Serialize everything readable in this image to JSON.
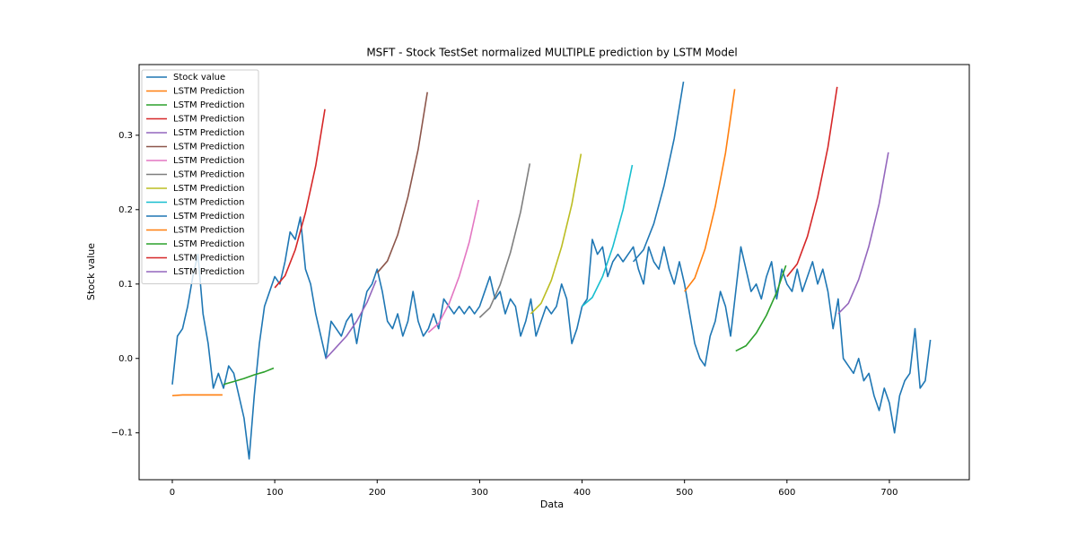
{
  "chart_data": {
    "type": "line",
    "title": "MSFT - Stock TestSet normalized MULTIPLE prediction by LSTM Model",
    "x_label": "Data",
    "y_label": "Stock value",
    "xlim": [
      -32.4,
      778
    ],
    "ylim": [
      -0.163,
      0.395
    ],
    "xticks": [
      0,
      100,
      200,
      300,
      400,
      500,
      600,
      700
    ],
    "yticks": [
      {
        "value": -0.1,
        "label": "−0.1"
      },
      {
        "value": 0,
        "label": "0.0"
      },
      0.1,
      0.2,
      0.3
    ],
    "grid": false,
    "legend": "upper left",
    "series": [
      {
        "name": "Stock value",
        "color": "#1f77b4",
        "x": [
          0,
          5,
          10,
          15,
          20,
          25,
          30,
          35,
          40,
          45,
          50,
          55,
          60,
          65,
          70,
          75,
          80,
          85,
          90,
          95,
          100,
          105,
          110,
          115,
          120,
          125,
          130,
          135,
          140,
          145,
          150,
          155,
          160,
          165,
          170,
          175,
          180,
          185,
          190,
          195,
          200,
          205,
          210,
          215,
          220,
          225,
          230,
          235,
          240,
          245,
          250,
          255,
          260,
          265,
          270,
          275,
          280,
          285,
          290,
          295,
          300,
          305,
          310,
          315,
          320,
          325,
          330,
          335,
          340,
          345,
          350,
          355,
          360,
          365,
          370,
          375,
          380,
          385,
          390,
          395,
          400,
          405,
          410,
          415,
          420,
          425,
          430,
          435,
          440,
          445,
          450,
          455,
          460,
          465,
          470,
          475,
          480,
          485,
          490,
          495,
          500,
          505,
          510,
          515,
          520,
          525,
          530,
          535,
          540,
          545,
          550,
          555,
          560,
          565,
          570,
          575,
          580,
          585,
          590,
          595,
          600,
          605,
          610,
          615,
          620,
          625,
          630,
          635,
          640,
          645,
          650,
          655,
          660,
          665,
          670,
          675,
          680,
          685,
          690,
          695,
          700,
          705,
          710,
          715,
          720,
          725,
          730,
          735,
          740
        ],
        "values": [
          -0.035,
          0.03,
          0.04,
          0.07,
          0.11,
          0.14,
          0.06,
          0.02,
          -0.04,
          -0.02,
          -0.04,
          -0.01,
          -0.02,
          -0.05,
          -0.08,
          -0.135,
          -0.05,
          0.02,
          0.07,
          0.09,
          0.11,
          0.1,
          0.13,
          0.17,
          0.16,
          0.19,
          0.12,
          0.1,
          0.06,
          0.03,
          0.0,
          0.05,
          0.04,
          0.03,
          0.05,
          0.06,
          0.02,
          0.06,
          0.09,
          0.1,
          0.12,
          0.09,
          0.05,
          0.04,
          0.06,
          0.03,
          0.05,
          0.09,
          0.05,
          0.03,
          0.04,
          0.06,
          0.04,
          0.08,
          0.07,
          0.06,
          0.07,
          0.06,
          0.07,
          0.06,
          0.07,
          0.09,
          0.11,
          0.08,
          0.09,
          0.06,
          0.08,
          0.07,
          0.03,
          0.05,
          0.08,
          0.03,
          0.05,
          0.07,
          0.06,
          0.07,
          0.1,
          0.08,
          0.02,
          0.04,
          0.07,
          0.08,
          0.16,
          0.14,
          0.15,
          0.11,
          0.13,
          0.14,
          0.13,
          0.14,
          0.15,
          0.12,
          0.1,
          0.15,
          0.13,
          0.12,
          0.15,
          0.12,
          0.1,
          0.13,
          0.1,
          0.06,
          0.02,
          0.0,
          -0.01,
          0.03,
          0.05,
          0.09,
          0.07,
          0.03,
          0.09,
          0.15,
          0.12,
          0.09,
          0.1,
          0.08,
          0.11,
          0.13,
          0.08,
          0.12,
          0.1,
          0.09,
          0.12,
          0.09,
          0.11,
          0.13,
          0.1,
          0.12,
          0.09,
          0.04,
          0.08,
          0.0,
          -0.01,
          -0.02,
          0.0,
          -0.03,
          -0.02,
          -0.05,
          -0.07,
          -0.04,
          -0.06,
          -0.1,
          -0.05,
          -0.03,
          -0.02,
          0.04,
          -0.04,
          -0.03,
          0.025
        ]
      },
      {
        "name": "LSTM Prediction",
        "color": "#ff7f0e",
        "x": [
          0,
          10,
          20,
          30,
          40,
          49
        ],
        "values": [
          -0.05,
          -0.049,
          -0.049,
          -0.049,
          -0.049,
          -0.049
        ]
      },
      {
        "name": "LSTM Prediction",
        "color": "#2ca02c",
        "x": [
          50,
          60,
          70,
          80,
          90,
          99
        ],
        "values": [
          -0.035,
          -0.031,
          -0.027,
          -0.022,
          -0.018,
          -0.013
        ]
      },
      {
        "name": "LSTM Prediction",
        "color": "#d62728",
        "x": [
          100,
          110,
          120,
          130,
          140,
          149
        ],
        "values": [
          0.095,
          0.111,
          0.146,
          0.196,
          0.259,
          0.335
        ]
      },
      {
        "name": "LSTM Prediction",
        "color": "#9467bd",
        "x": [
          150,
          160,
          170,
          180,
          190,
          199
        ],
        "values": [
          0.0,
          0.015,
          0.03,
          0.05,
          0.075,
          0.105
        ]
      },
      {
        "name": "LSTM Prediction",
        "color": "#8c564b",
        "x": [
          200,
          210,
          220,
          230,
          240,
          249
        ],
        "values": [
          0.115,
          0.131,
          0.166,
          0.217,
          0.281,
          0.358
        ]
      },
      {
        "name": "LSTM Prediction",
        "color": "#e377c2",
        "x": [
          250,
          260,
          270,
          280,
          290,
          299
        ],
        "values": [
          0.035,
          0.047,
          0.073,
          0.11,
          0.157,
          0.213
        ]
      },
      {
        "name": "LSTM Prediction",
        "color": "#7f7f7f",
        "x": [
          300,
          310,
          320,
          330,
          340,
          349
        ],
        "values": [
          0.055,
          0.068,
          0.099,
          0.142,
          0.197,
          0.262
        ]
      },
      {
        "name": "LSTM Prediction",
        "color": "#bcbd22",
        "x": [
          350,
          360,
          370,
          380,
          390,
          399
        ],
        "values": [
          0.06,
          0.074,
          0.105,
          0.15,
          0.207,
          0.275
        ]
      },
      {
        "name": "LSTM Prediction",
        "color": "#17becf",
        "x": [
          400,
          410,
          420,
          430,
          440,
          449
        ],
        "values": [
          0.07,
          0.082,
          0.11,
          0.15,
          0.2,
          0.26
        ]
      },
      {
        "name": "LSTM Prediction",
        "color": "#1f77b4",
        "x": [
          450,
          460,
          470,
          480,
          490,
          499
        ],
        "values": [
          0.13,
          0.146,
          0.181,
          0.232,
          0.296,
          0.372
        ]
      },
      {
        "name": "LSTM Prediction",
        "color": "#ff7f0e",
        "x": [
          500,
          510,
          520,
          530,
          540,
          549
        ],
        "values": [
          0.09,
          0.108,
          0.147,
          0.204,
          0.276,
          0.362
        ]
      },
      {
        "name": "LSTM Prediction",
        "color": "#2ca02c",
        "x": [
          550,
          560,
          570,
          580,
          590,
          599
        ],
        "values": [
          0.01,
          0.017,
          0.034,
          0.058,
          0.089,
          0.125
        ]
      },
      {
        "name": "LSTM Prediction",
        "color": "#d62728",
        "x": [
          600,
          610,
          620,
          630,
          640,
          649
        ],
        "values": [
          0.11,
          0.127,
          0.164,
          0.217,
          0.284,
          0.365
        ]
      },
      {
        "name": "LSTM Prediction",
        "color": "#9467bd",
        "x": [
          650,
          660,
          670,
          680,
          690,
          699
        ],
        "values": [
          0.06,
          0.074,
          0.106,
          0.151,
          0.208,
          0.277
        ]
      }
    ]
  }
}
